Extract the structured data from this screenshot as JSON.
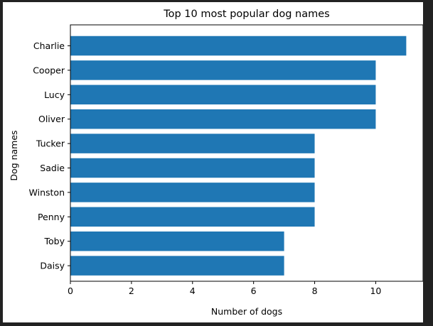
{
  "chart_data": {
    "type": "bar",
    "orientation": "horizontal",
    "title": "Top 10 most popular dog names",
    "xlabel": "Number of dogs",
    "ylabel": "Dog names",
    "categories": [
      "Charlie",
      "Cooper",
      "Lucy",
      "Oliver",
      "Tucker",
      "Sadie",
      "Winston",
      "Penny",
      "Toby",
      "Daisy"
    ],
    "values": [
      11,
      10,
      10,
      10,
      8,
      8,
      8,
      8,
      7,
      7
    ],
    "xlim": [
      0,
      11.55
    ],
    "xticks": [
      0,
      2,
      4,
      6,
      8,
      10
    ],
    "grid": false,
    "bar_color": "#1f77b4"
  }
}
